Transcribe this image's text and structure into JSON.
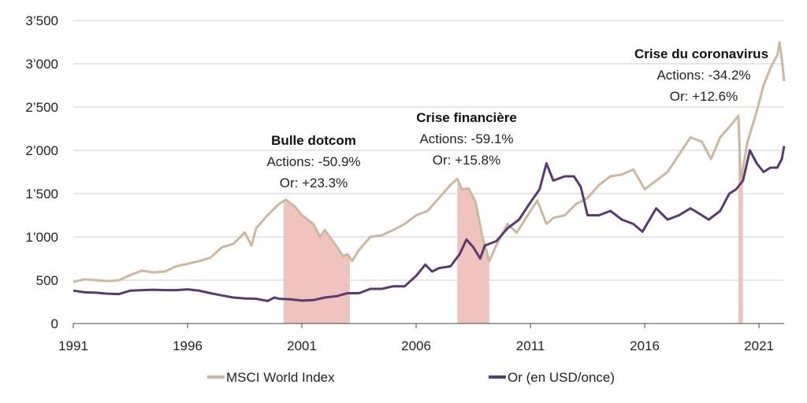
{
  "chart_data": {
    "type": "line",
    "x_ticks": [
      "1991",
      "1996",
      "2001",
      "2006",
      "2011",
      "2016",
      "2021"
    ],
    "y_ticks": [
      "0",
      "500",
      "1’000",
      "1’500",
      "2’000",
      "2’500",
      "3’000",
      "3’500"
    ],
    "xlim": [
      1991,
      2022.1
    ],
    "ylim": [
      0,
      3500
    ],
    "grid": true,
    "legend_position": "bottom",
    "series": [
      {
        "name": "MSCI World Index",
        "color": "#cdb89f",
        "points": [
          [
            1991.0,
            480
          ],
          [
            1991.5,
            510
          ],
          [
            1992.0,
            500
          ],
          [
            1992.5,
            490
          ],
          [
            1993.0,
            500
          ],
          [
            1993.5,
            560
          ],
          [
            1994.0,
            610
          ],
          [
            1994.5,
            590
          ],
          [
            1995.0,
            600
          ],
          [
            1995.5,
            660
          ],
          [
            1996.0,
            690
          ],
          [
            1996.5,
            720
          ],
          [
            1997.0,
            760
          ],
          [
            1997.5,
            880
          ],
          [
            1998.0,
            920
          ],
          [
            1998.5,
            1050
          ],
          [
            1998.8,
            900
          ],
          [
            1999.0,
            1100
          ],
          [
            1999.5,
            1250
          ],
          [
            2000.0,
            1380
          ],
          [
            2000.3,
            1430
          ],
          [
            2000.7,
            1350
          ],
          [
            2001.0,
            1250
          ],
          [
            2001.5,
            1150
          ],
          [
            2001.8,
            1000
          ],
          [
            2002.0,
            1080
          ],
          [
            2002.5,
            900
          ],
          [
            2002.8,
            780
          ],
          [
            2003.0,
            800
          ],
          [
            2003.2,
            720
          ],
          [
            2003.5,
            850
          ],
          [
            2004.0,
            1000
          ],
          [
            2004.5,
            1020
          ],
          [
            2005.0,
            1080
          ],
          [
            2005.5,
            1150
          ],
          [
            2006.0,
            1250
          ],
          [
            2006.5,
            1300
          ],
          [
            2007.0,
            1450
          ],
          [
            2007.5,
            1600
          ],
          [
            2007.8,
            1670
          ],
          [
            2008.0,
            1550
          ],
          [
            2008.3,
            1560
          ],
          [
            2008.6,
            1400
          ],
          [
            2008.9,
            1000
          ],
          [
            2009.2,
            720
          ],
          [
            2009.5,
            900
          ],
          [
            2010.0,
            1150
          ],
          [
            2010.4,
            1050
          ],
          [
            2011.0,
            1300
          ],
          [
            2011.3,
            1420
          ],
          [
            2011.7,
            1150
          ],
          [
            2012.0,
            1220
          ],
          [
            2012.5,
            1250
          ],
          [
            2013.0,
            1380
          ],
          [
            2013.5,
            1450
          ],
          [
            2014.0,
            1600
          ],
          [
            2014.5,
            1700
          ],
          [
            2015.0,
            1720
          ],
          [
            2015.5,
            1780
          ],
          [
            2016.0,
            1550
          ],
          [
            2016.5,
            1650
          ],
          [
            2017.0,
            1750
          ],
          [
            2017.5,
            1950
          ],
          [
            2018.0,
            2150
          ],
          [
            2018.5,
            2100
          ],
          [
            2018.9,
            1900
          ],
          [
            2019.3,
            2150
          ],
          [
            2019.8,
            2300
          ],
          [
            2020.1,
            2400
          ],
          [
            2020.2,
            1650
          ],
          [
            2020.5,
            2100
          ],
          [
            2020.9,
            2450
          ],
          [
            2021.2,
            2750
          ],
          [
            2021.5,
            2950
          ],
          [
            2021.8,
            3100
          ],
          [
            2021.9,
            3250
          ],
          [
            2022.0,
            3050
          ],
          [
            2022.1,
            2800
          ]
        ]
      },
      {
        "name": "Or (en USD/once)",
        "color": "#5a3a73",
        "points": [
          [
            1991.0,
            380
          ],
          [
            1991.5,
            360
          ],
          [
            1992.0,
            355
          ],
          [
            1992.5,
            345
          ],
          [
            1993.0,
            340
          ],
          [
            1993.5,
            380
          ],
          [
            1994.0,
            385
          ],
          [
            1994.5,
            390
          ],
          [
            1995.0,
            385
          ],
          [
            1995.5,
            385
          ],
          [
            1996.0,
            395
          ],
          [
            1996.5,
            380
          ],
          [
            1997.0,
            350
          ],
          [
            1997.5,
            325
          ],
          [
            1998.0,
            300
          ],
          [
            1998.5,
            290
          ],
          [
            1999.0,
            285
          ],
          [
            1999.5,
            260
          ],
          [
            1999.8,
            300
          ],
          [
            2000.0,
            285
          ],
          [
            2000.5,
            280
          ],
          [
            2001.0,
            265
          ],
          [
            2001.5,
            270
          ],
          [
            2002.0,
            300
          ],
          [
            2002.5,
            315
          ],
          [
            2003.0,
            350
          ],
          [
            2003.5,
            350
          ],
          [
            2004.0,
            400
          ],
          [
            2004.5,
            400
          ],
          [
            2005.0,
            430
          ],
          [
            2005.5,
            430
          ],
          [
            2006.0,
            550
          ],
          [
            2006.4,
            680
          ],
          [
            2006.7,
            600
          ],
          [
            2007.0,
            640
          ],
          [
            2007.5,
            660
          ],
          [
            2007.9,
            800
          ],
          [
            2008.2,
            970
          ],
          [
            2008.5,
            880
          ],
          [
            2008.8,
            750
          ],
          [
            2009.0,
            900
          ],
          [
            2009.5,
            950
          ],
          [
            2010.0,
            1100
          ],
          [
            2010.5,
            1200
          ],
          [
            2011.0,
            1400
          ],
          [
            2011.4,
            1550
          ],
          [
            2011.7,
            1850
          ],
          [
            2012.0,
            1650
          ],
          [
            2012.5,
            1700
          ],
          [
            2012.9,
            1700
          ],
          [
            2013.2,
            1580
          ],
          [
            2013.5,
            1250
          ],
          [
            2014.0,
            1250
          ],
          [
            2014.5,
            1300
          ],
          [
            2015.0,
            1200
          ],
          [
            2015.5,
            1150
          ],
          [
            2015.9,
            1060
          ],
          [
            2016.5,
            1330
          ],
          [
            2017.0,
            1200
          ],
          [
            2017.5,
            1250
          ],
          [
            2018.0,
            1330
          ],
          [
            2018.5,
            1250
          ],
          [
            2018.8,
            1200
          ],
          [
            2019.3,
            1300
          ],
          [
            2019.7,
            1500
          ],
          [
            2020.0,
            1550
          ],
          [
            2020.3,
            1650
          ],
          [
            2020.6,
            2000
          ],
          [
            2020.9,
            1850
          ],
          [
            2021.2,
            1750
          ],
          [
            2021.5,
            1800
          ],
          [
            2021.8,
            1800
          ],
          [
            2022.0,
            1900
          ],
          [
            2022.1,
            2050
          ]
        ]
      }
    ],
    "crisis_periods": [
      {
        "start": 2000.2,
        "end": 2003.1,
        "title": "Bulle dotcom",
        "line1": "Actions:  -50.9%",
        "line2": "Or: +23.3%",
        "color": "#f0c4be"
      },
      {
        "start": 2007.8,
        "end": 2009.2,
        "title": "Crise financière",
        "line1": "Actions:  -59.1%",
        "line2": "Or: +15.8%",
        "color": "#f0c4be"
      },
      {
        "start": 2020.1,
        "end": 2020.3,
        "title": "Crise du coronavirus",
        "line1": "Actions:  -34.2%",
        "line2": "Or: +12.6%",
        "color": "#f0c4be"
      }
    ]
  }
}
